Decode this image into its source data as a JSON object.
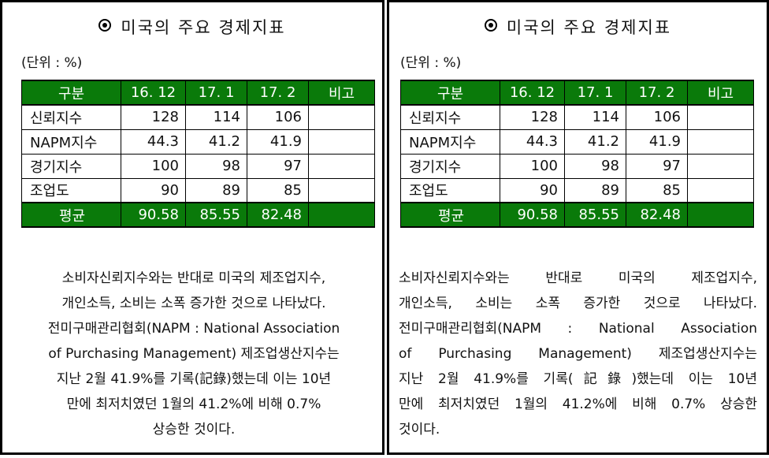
{
  "title": "미국의 주요 경제지표",
  "unit": "(단위 : %)",
  "table": {
    "headers": [
      "구분",
      "16. 12",
      "17. 1",
      "17. 2",
      "비고"
    ],
    "rows": [
      [
        "신뢰지수",
        "128",
        "114",
        "106",
        ""
      ],
      [
        "NAPM지수",
        "44.3",
        "41.2",
        "41.9",
        ""
      ],
      [
        "경기지수",
        "100",
        "98",
        "97",
        ""
      ],
      [
        "조업도",
        "90",
        "89",
        "85",
        ""
      ]
    ],
    "average": [
      "평균",
      "90.58",
      "85.55",
      "82.48",
      ""
    ]
  },
  "paragraph_left": [
    "소비자신뢰지수와는 반대로 미국의 제조업지수,",
    "개인소득, 소비는 소폭 증가한 것으로 나타났다.",
    "전미구매관리협회(NAPM : National Association",
    "of Purchasing Management) 제조업생산지수는",
    "지난 2월 41.9%를 기록(記錄)했는데 이는 10년",
    "만에 최저치였던 1월의 41.2%에 비해 0.7%",
    "상승한 것이다."
  ],
  "paragraph_right": [
    "소비자신뢰지수와는 반대로 미국의 제조업지수,",
    "개인소득, 소비는 소폭 증가한 것으로 나타났다.",
    "전미구매관리협회(NAPM : National Association",
    "of Purchasing Management) 제조업생산지수는",
    "지난 2월 41.9%를 기록(記錄)했는데 이는 10년",
    "만에 최저치였던 1월의 41.2%에 비해 0.7% 상승한",
    "것이다."
  ],
  "colors": {
    "header_green": "#0a7a0a",
    "border": "#000000"
  },
  "icons": {
    "title_bullet": "circle-dot-icon"
  }
}
